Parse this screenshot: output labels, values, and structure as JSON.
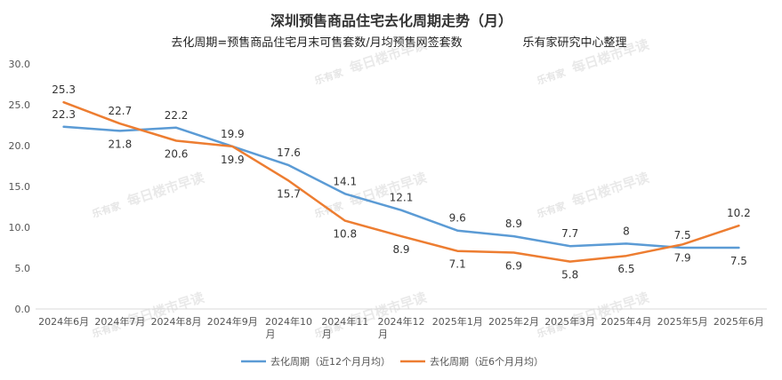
{
  "chart_data": {
    "type": "line",
    "title": "深圳预售商品住宅去化周期走势（月）",
    "subtitle": "去化周期=预售商品住宅月末可售套数/月均预售网签套数",
    "source": "乐有家研究中心整理",
    "watermark": {
      "logo": "乐有家",
      "text": "每日楼市早读"
    },
    "categories": [
      [
        "2024年6月"
      ],
      [
        "2024年7月"
      ],
      [
        "2024年8月"
      ],
      [
        "2024年9月"
      ],
      [
        "2024年10",
        "月"
      ],
      [
        "2024年11",
        "月"
      ],
      [
        "2024年12",
        "月"
      ],
      [
        "2025年1月"
      ],
      [
        "2025年2月"
      ],
      [
        "2025年3月"
      ],
      [
        "2025年4月"
      ],
      [
        "2025年5月"
      ],
      [
        "2025年6月"
      ]
    ],
    "ylim": [
      0,
      30
    ],
    "yticks": [
      "0.0",
      "5.0",
      "10.0",
      "15.0",
      "20.0",
      "25.0",
      "30.0"
    ],
    "grid": false,
    "legend_position": "bottom",
    "series": [
      {
        "name": "去化周期（近12个月月均）",
        "color": "#5b9bd5",
        "values": [
          22.3,
          21.8,
          22.2,
          19.9,
          17.6,
          14.1,
          12.1,
          9.6,
          8.9,
          7.7,
          8,
          7.5,
          7.5
        ],
        "labels": [
          "22.3",
          "21.8",
          "22.2",
          "19.9",
          "17.6",
          "14.1",
          "12.1",
          "9.6",
          "8.9",
          "7.7",
          "8",
          "7.5",
          "7.5"
        ],
        "label_side": [
          "above",
          "below",
          "above",
          "above",
          "above",
          "above",
          "above",
          "above",
          "above",
          "above",
          "above",
          "above",
          "below"
        ]
      },
      {
        "name": "去化周期（近6个月月均）",
        "color": "#ed7d31",
        "values": [
          25.3,
          22.7,
          20.6,
          19.9,
          15.7,
          10.8,
          8.9,
          7.1,
          6.9,
          5.8,
          6.5,
          7.9,
          10.2
        ],
        "labels": [
          "25.3",
          "22.7",
          "20.6",
          "19.9",
          "15.7",
          "10.8",
          "8.9",
          "7.1",
          "6.9",
          "5.8",
          "6.5",
          "7.9",
          "10.2"
        ],
        "label_side": [
          "above",
          "above",
          "below",
          "below",
          "below",
          "below",
          "below",
          "below",
          "below",
          "below",
          "below",
          "below",
          "above"
        ]
      }
    ]
  }
}
